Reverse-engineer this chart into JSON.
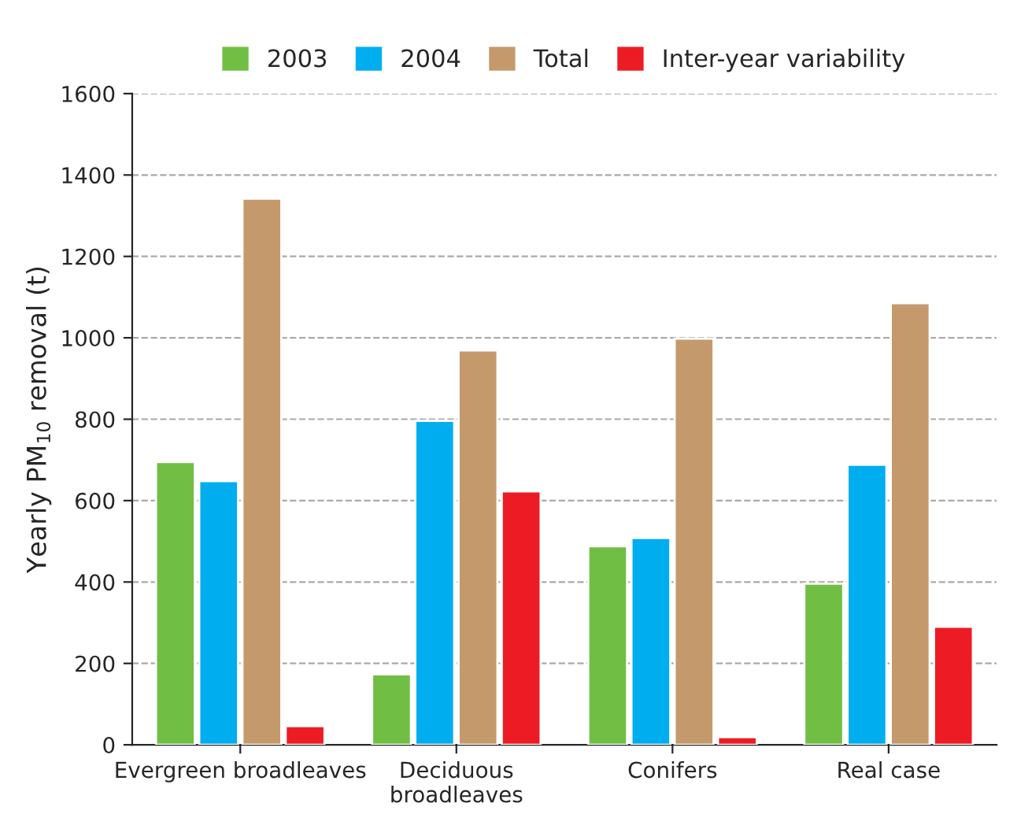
{
  "chart_data": {
    "type": "bar",
    "ylabel": "Yearly PM$_{10}$ removal (t)",
    "categories": [
      "Evergreen broadleaves",
      "Deciduous\nbroadleaves",
      "Conifers",
      "Real case"
    ],
    "series": [
      {
        "name": "2003",
        "color": "#70bf44",
        "values": [
          695,
          173,
          488,
          396
        ]
      },
      {
        "name": "2004",
        "color": "#00aeef",
        "values": [
          648,
          796,
          508,
          688
        ]
      },
      {
        "name": "Total",
        "color": "#c49a6c",
        "values": [
          1342,
          969,
          998,
          1085
        ]
      },
      {
        "name": "Inter-year variability",
        "color": "#ed1c24",
        "values": [
          46,
          623,
          19,
          290
        ]
      }
    ],
    "ylim": [
      0,
      1600
    ],
    "yticks": [
      0,
      200,
      400,
      600,
      800,
      1000,
      1200,
      1400,
      1600
    ],
    "grid": "y",
    "legend": "top"
  }
}
